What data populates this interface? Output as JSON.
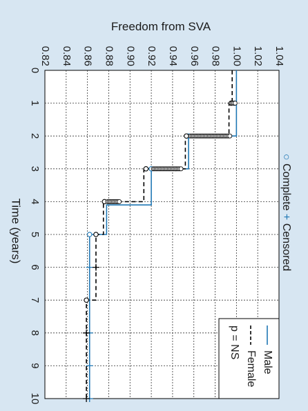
{
  "chart_data": {
    "type": "line",
    "title": "Freedom from SVA",
    "xlabel": "Time (years)",
    "ylabel": "",
    "xlim": [
      0,
      10
    ],
    "ylim": [
      0.82,
      1.04
    ],
    "x_ticks": [
      "0",
      "1",
      "2",
      "3",
      "4",
      "5",
      "6",
      "7",
      "8",
      "9",
      "10"
    ],
    "y_ticks": [
      "0.82",
      "0.84",
      "0.86",
      "0.88",
      "0.90",
      "0.92",
      "0.94",
      "0.96",
      "0.98",
      "1.00",
      "1.02",
      "1.04"
    ],
    "grid": true,
    "legend_placement": "bottom-right",
    "series": [
      {
        "name": "Male",
        "color": "#1f77b4",
        "line_style": "solid",
        "steps": [
          [
            0,
            1.0
          ],
          [
            2.0,
            0.955
          ],
          [
            3.0,
            0.92
          ],
          [
            4.1,
            0.878
          ],
          [
            5.0,
            0.862
          ],
          [
            10,
            0.862
          ]
        ],
        "complete_events": [
          [
            1.0,
            0.998
          ],
          [
            2.0,
            0.955
          ],
          [
            3.0,
            0.92
          ],
          [
            5.0,
            0.862
          ]
        ],
        "censored": [
          [
            6.0,
            0.862
          ],
          [
            8.0,
            0.862
          ],
          [
            9.0,
            0.862
          ],
          [
            10.0,
            0.862
          ]
        ]
      },
      {
        "name": "Female",
        "color": "#000000",
        "line_style": "dashed",
        "steps": [
          [
            0,
            0.996
          ],
          [
            1.0,
            0.993
          ],
          [
            2.0,
            0.952
          ],
          [
            3.0,
            0.913
          ],
          [
            4.0,
            0.875
          ],
          [
            5.0,
            0.868
          ],
          [
            7.0,
            0.859
          ],
          [
            10,
            0.859
          ]
        ],
        "complete_events": [
          [
            1.0,
            0.995
          ],
          [
            2.0,
            0.953
          ],
          [
            3.0,
            0.915
          ],
          [
            4.0,
            0.876
          ],
          [
            5.0,
            0.868
          ],
          [
            7.0,
            0.859
          ]
        ],
        "censored": [
          [
            6.0,
            0.868
          ],
          [
            8.0,
            0.859
          ],
          [
            10.0,
            0.859
          ]
        ]
      }
    ],
    "censored_clusters": [
      {
        "x": 1.0,
        "y": 0.996,
        "count": 3
      },
      {
        "x": 2.0,
        "y": 0.957,
        "count": 28
      },
      {
        "x": 3.0,
        "y": 0.922,
        "count": 20
      },
      {
        "x": 4.0,
        "y": 0.879,
        "count": 9
      }
    ],
    "legend_markers": [
      {
        "marker": "○",
        "label": "Complete"
      },
      {
        "marker": "+",
        "label": "Censored"
      }
    ],
    "annotation": "p = NS"
  }
}
